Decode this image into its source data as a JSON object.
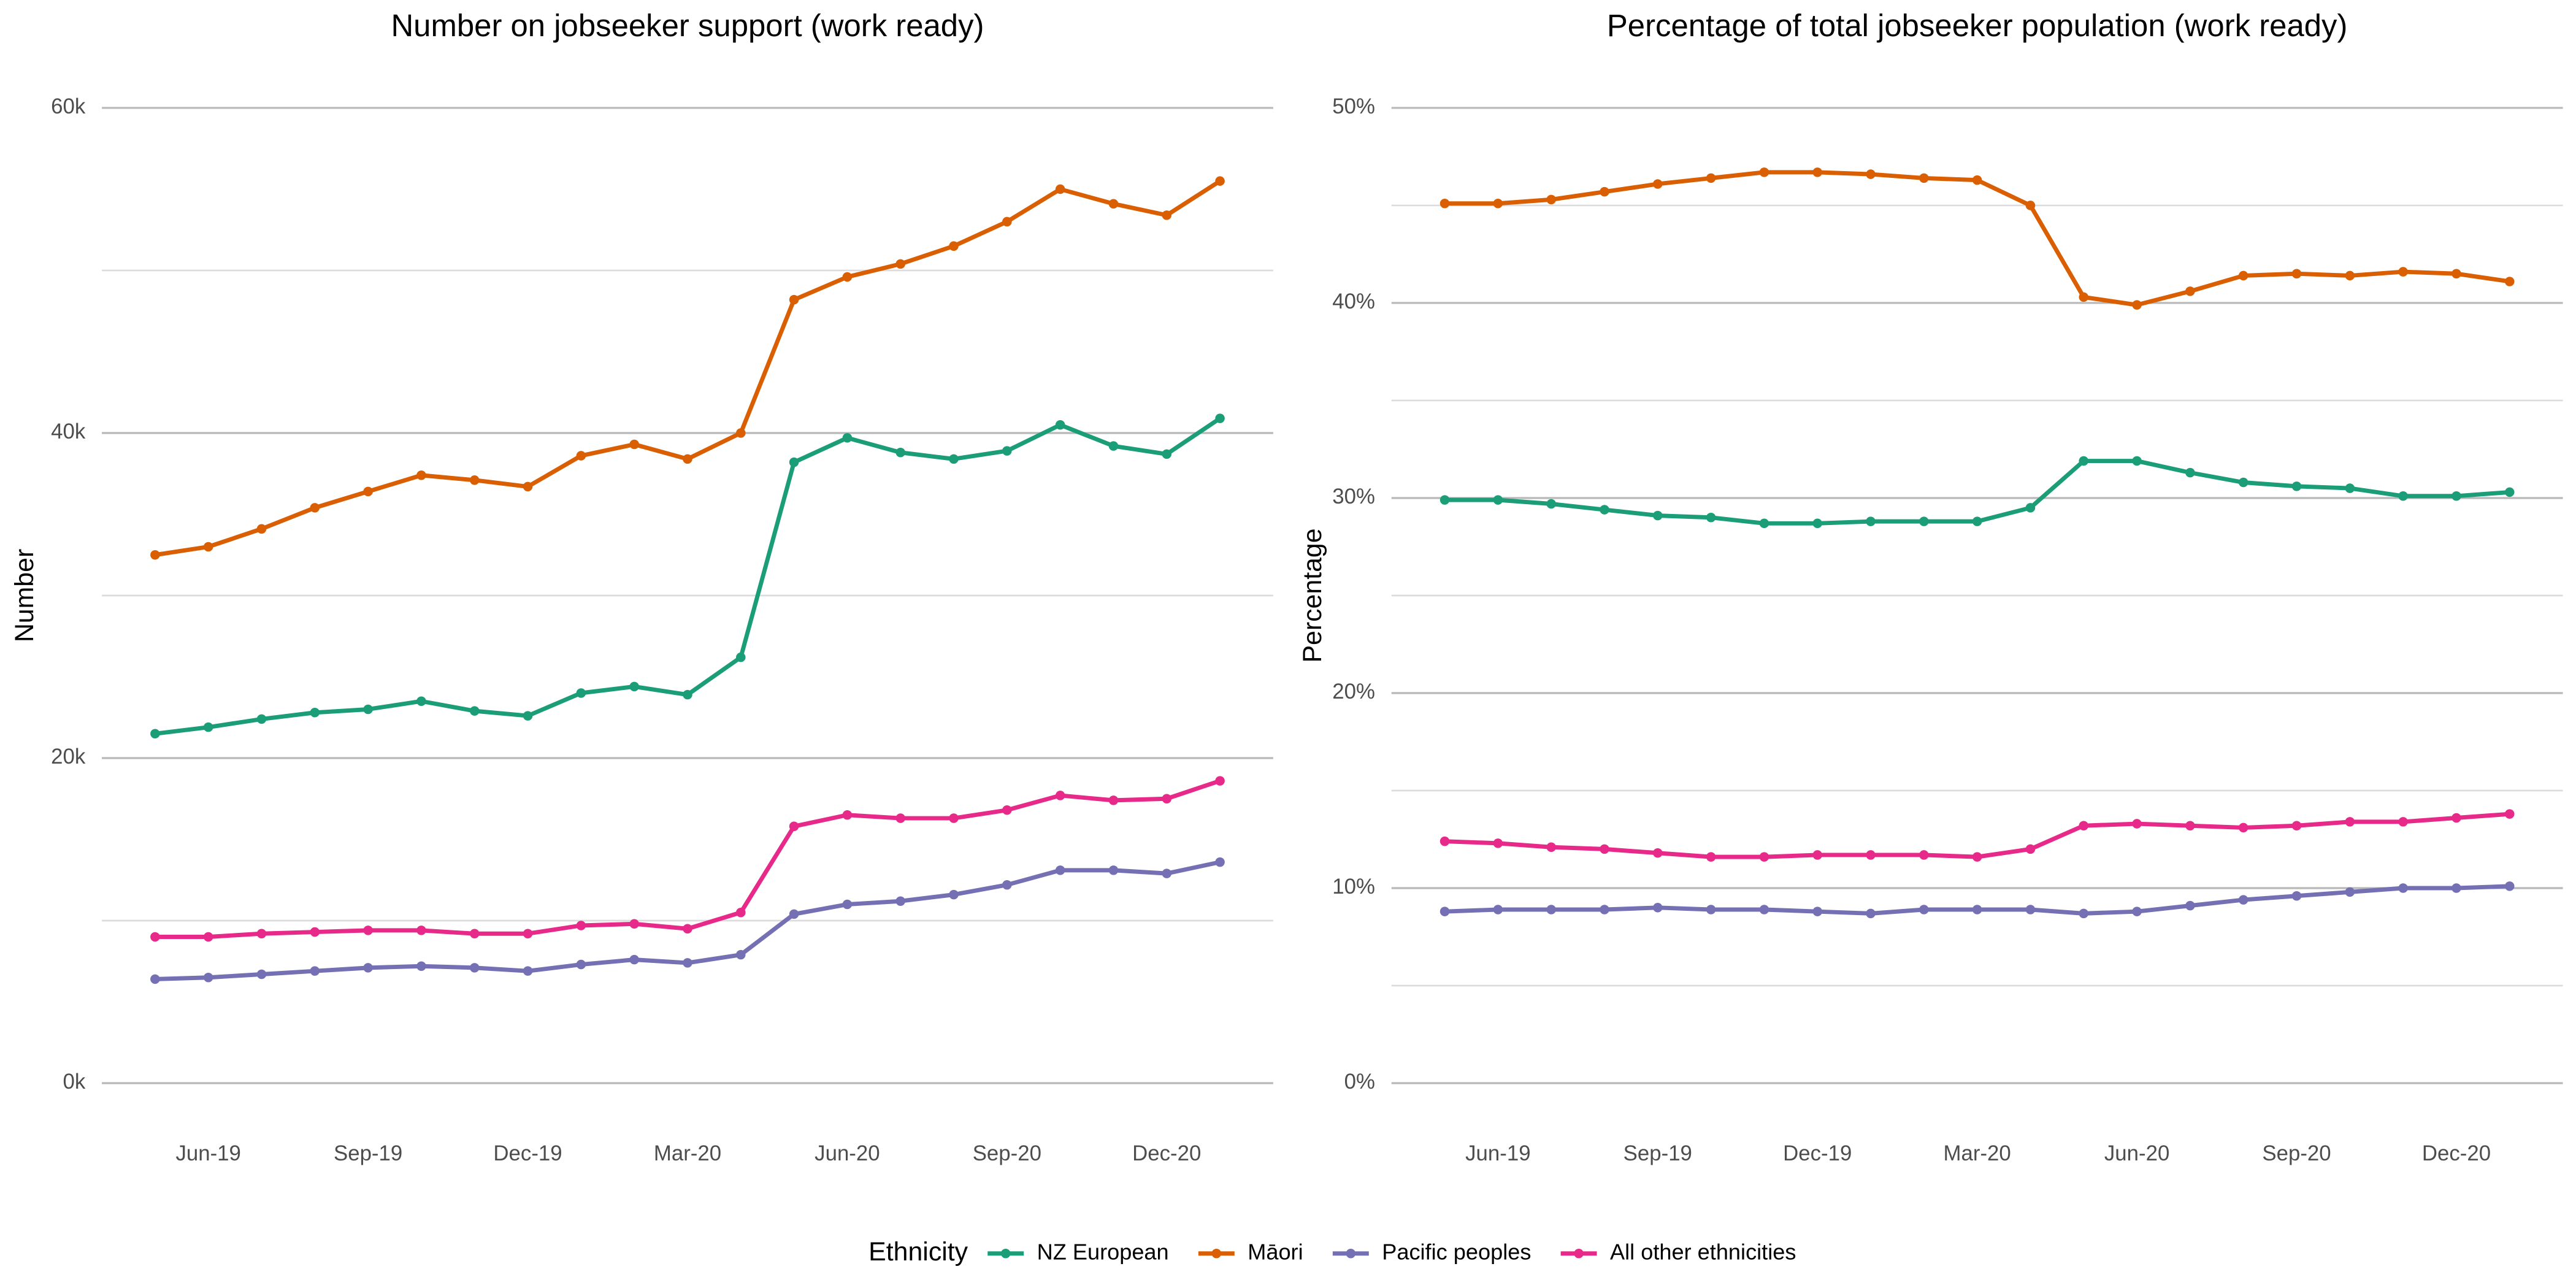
{
  "chart_data": [
    {
      "type": "line",
      "title": "Number on jobseeker support (work ready)",
      "ylabel": "Number",
      "x": [
        "2019-05",
        "2019-06",
        "2019-07",
        "2019-08",
        "2019-09",
        "2019-10",
        "2019-11",
        "2019-12",
        "2020-01",
        "2020-02",
        "2020-03",
        "2020-04",
        "2020-05",
        "2020-06",
        "2020-07",
        "2020-08",
        "2020-09",
        "2020-10",
        "2020-11",
        "2020-12",
        "2021-01"
      ],
      "xlim": [
        "2019-04",
        "2021-02"
      ],
      "xticks": [
        {
          "value": "2019-06",
          "label": "Jun-19"
        },
        {
          "value": "2019-09",
          "label": "Sep-19"
        },
        {
          "value": "2019-12",
          "label": "Dec-19"
        },
        {
          "value": "2020-03",
          "label": "Mar-20"
        },
        {
          "value": "2020-06",
          "label": "Jun-20"
        },
        {
          "value": "2020-09",
          "label": "Sep-20"
        },
        {
          "value": "2020-12",
          "label": "Dec-20"
        }
      ],
      "ylim": [
        -3000,
        63000
      ],
      "yticks": [
        {
          "value": 0,
          "label": "0k"
        },
        {
          "value": 20000,
          "label": "20k"
        },
        {
          "value": 40000,
          "label": "40k"
        },
        {
          "value": 60000,
          "label": "60k"
        }
      ],
      "minor_yticks": [
        10000,
        30000,
        50000
      ],
      "grid": true,
      "series": [
        {
          "name": "NZ European",
          "color": "#1b9e77",
          "values": [
            21500,
            21900,
            22400,
            22800,
            23000,
            23500,
            22900,
            22600,
            24000,
            24400,
            23900,
            26200,
            38200,
            39700,
            38800,
            38400,
            38900,
            40500,
            39200,
            38700,
            40900
          ]
        },
        {
          "name": "Māori",
          "color": "#d95f02",
          "values": [
            32500,
            33000,
            34100,
            35400,
            36400,
            37400,
            37100,
            36700,
            38600,
            39300,
            38400,
            40000,
            48200,
            49600,
            50400,
            51500,
            53000,
            55000,
            54100,
            53400,
            55500
          ]
        },
        {
          "name": "Pacific peoples",
          "color": "#7570b3",
          "values": [
            6400,
            6500,
            6700,
            6900,
            7100,
            7200,
            7100,
            6900,
            7300,
            7600,
            7400,
            7900,
            10400,
            11000,
            11200,
            11600,
            12200,
            13100,
            13100,
            12900,
            13600
          ]
        },
        {
          "name": "All other ethnicities",
          "color": "#e7298a",
          "values": [
            9000,
            9000,
            9200,
            9300,
            9400,
            9400,
            9200,
            9200,
            9700,
            9800,
            9500,
            10500,
            15800,
            16500,
            16300,
            16300,
            16800,
            17700,
            17400,
            17500,
            18600
          ]
        }
      ]
    },
    {
      "type": "line",
      "title": "Percentage of total jobseeker population (work ready)",
      "ylabel": "Percentage",
      "x": [
        "2019-05",
        "2019-06",
        "2019-07",
        "2019-08",
        "2019-09",
        "2019-10",
        "2019-11",
        "2019-12",
        "2020-01",
        "2020-02",
        "2020-03",
        "2020-04",
        "2020-05",
        "2020-06",
        "2020-07",
        "2020-08",
        "2020-09",
        "2020-10",
        "2020-11",
        "2020-12",
        "2021-01"
      ],
      "xlim": [
        "2019-04",
        "2021-02"
      ],
      "xticks": [
        {
          "value": "2019-06",
          "label": "Jun-19"
        },
        {
          "value": "2019-09",
          "label": "Sep-19"
        },
        {
          "value": "2019-12",
          "label": "Dec-19"
        },
        {
          "value": "2020-03",
          "label": "Mar-20"
        },
        {
          "value": "2020-06",
          "label": "Jun-20"
        },
        {
          "value": "2020-09",
          "label": "Sep-20"
        },
        {
          "value": "2020-12",
          "label": "Dec-20"
        }
      ],
      "ylim": [
        -2.5,
        52.5
      ],
      "yticks": [
        {
          "value": 0,
          "label": "0%"
        },
        {
          "value": 10,
          "label": "10%"
        },
        {
          "value": 20,
          "label": "20%"
        },
        {
          "value": 30,
          "label": "30%"
        },
        {
          "value": 40,
          "label": "40%"
        },
        {
          "value": 50,
          "label": "50%"
        }
      ],
      "minor_yticks": [
        5,
        15,
        25,
        35,
        45
      ],
      "grid": true,
      "series": [
        {
          "values": [
            29.9,
            29.9,
            29.7,
            29.4,
            29.1,
            29.0,
            28.7,
            28.7,
            28.8,
            28.8,
            28.8,
            29.5,
            31.9,
            31.9,
            31.3,
            30.8,
            30.6,
            30.5,
            30.1,
            30.1,
            30.3
          ]
        },
        {
          "values": [
            45.1,
            45.1,
            45.3,
            45.7,
            46.1,
            46.4,
            46.7,
            46.7,
            46.6,
            46.4,
            46.3,
            45.0,
            40.3,
            39.9,
            40.6,
            41.4,
            41.5,
            41.4,
            41.6,
            41.5,
            41.1
          ]
        },
        {
          "values": [
            8.8,
            8.9,
            8.9,
            8.9,
            9.0,
            8.9,
            8.9,
            8.8,
            8.7,
            8.9,
            8.9,
            8.9,
            8.7,
            8.8,
            9.1,
            9.4,
            9.6,
            9.8,
            10.0,
            10.0,
            10.1
          ]
        },
        {
          "values": [
            12.4,
            12.3,
            12.1,
            12.0,
            11.8,
            11.6,
            11.6,
            11.7,
            11.7,
            11.7,
            11.6,
            12.0,
            13.2,
            13.3,
            13.2,
            13.1,
            13.2,
            13.4,
            13.4,
            13.6,
            13.8
          ]
        }
      ]
    }
  ],
  "legend": {
    "title": "Ethnicity",
    "position": "bottom"
  }
}
